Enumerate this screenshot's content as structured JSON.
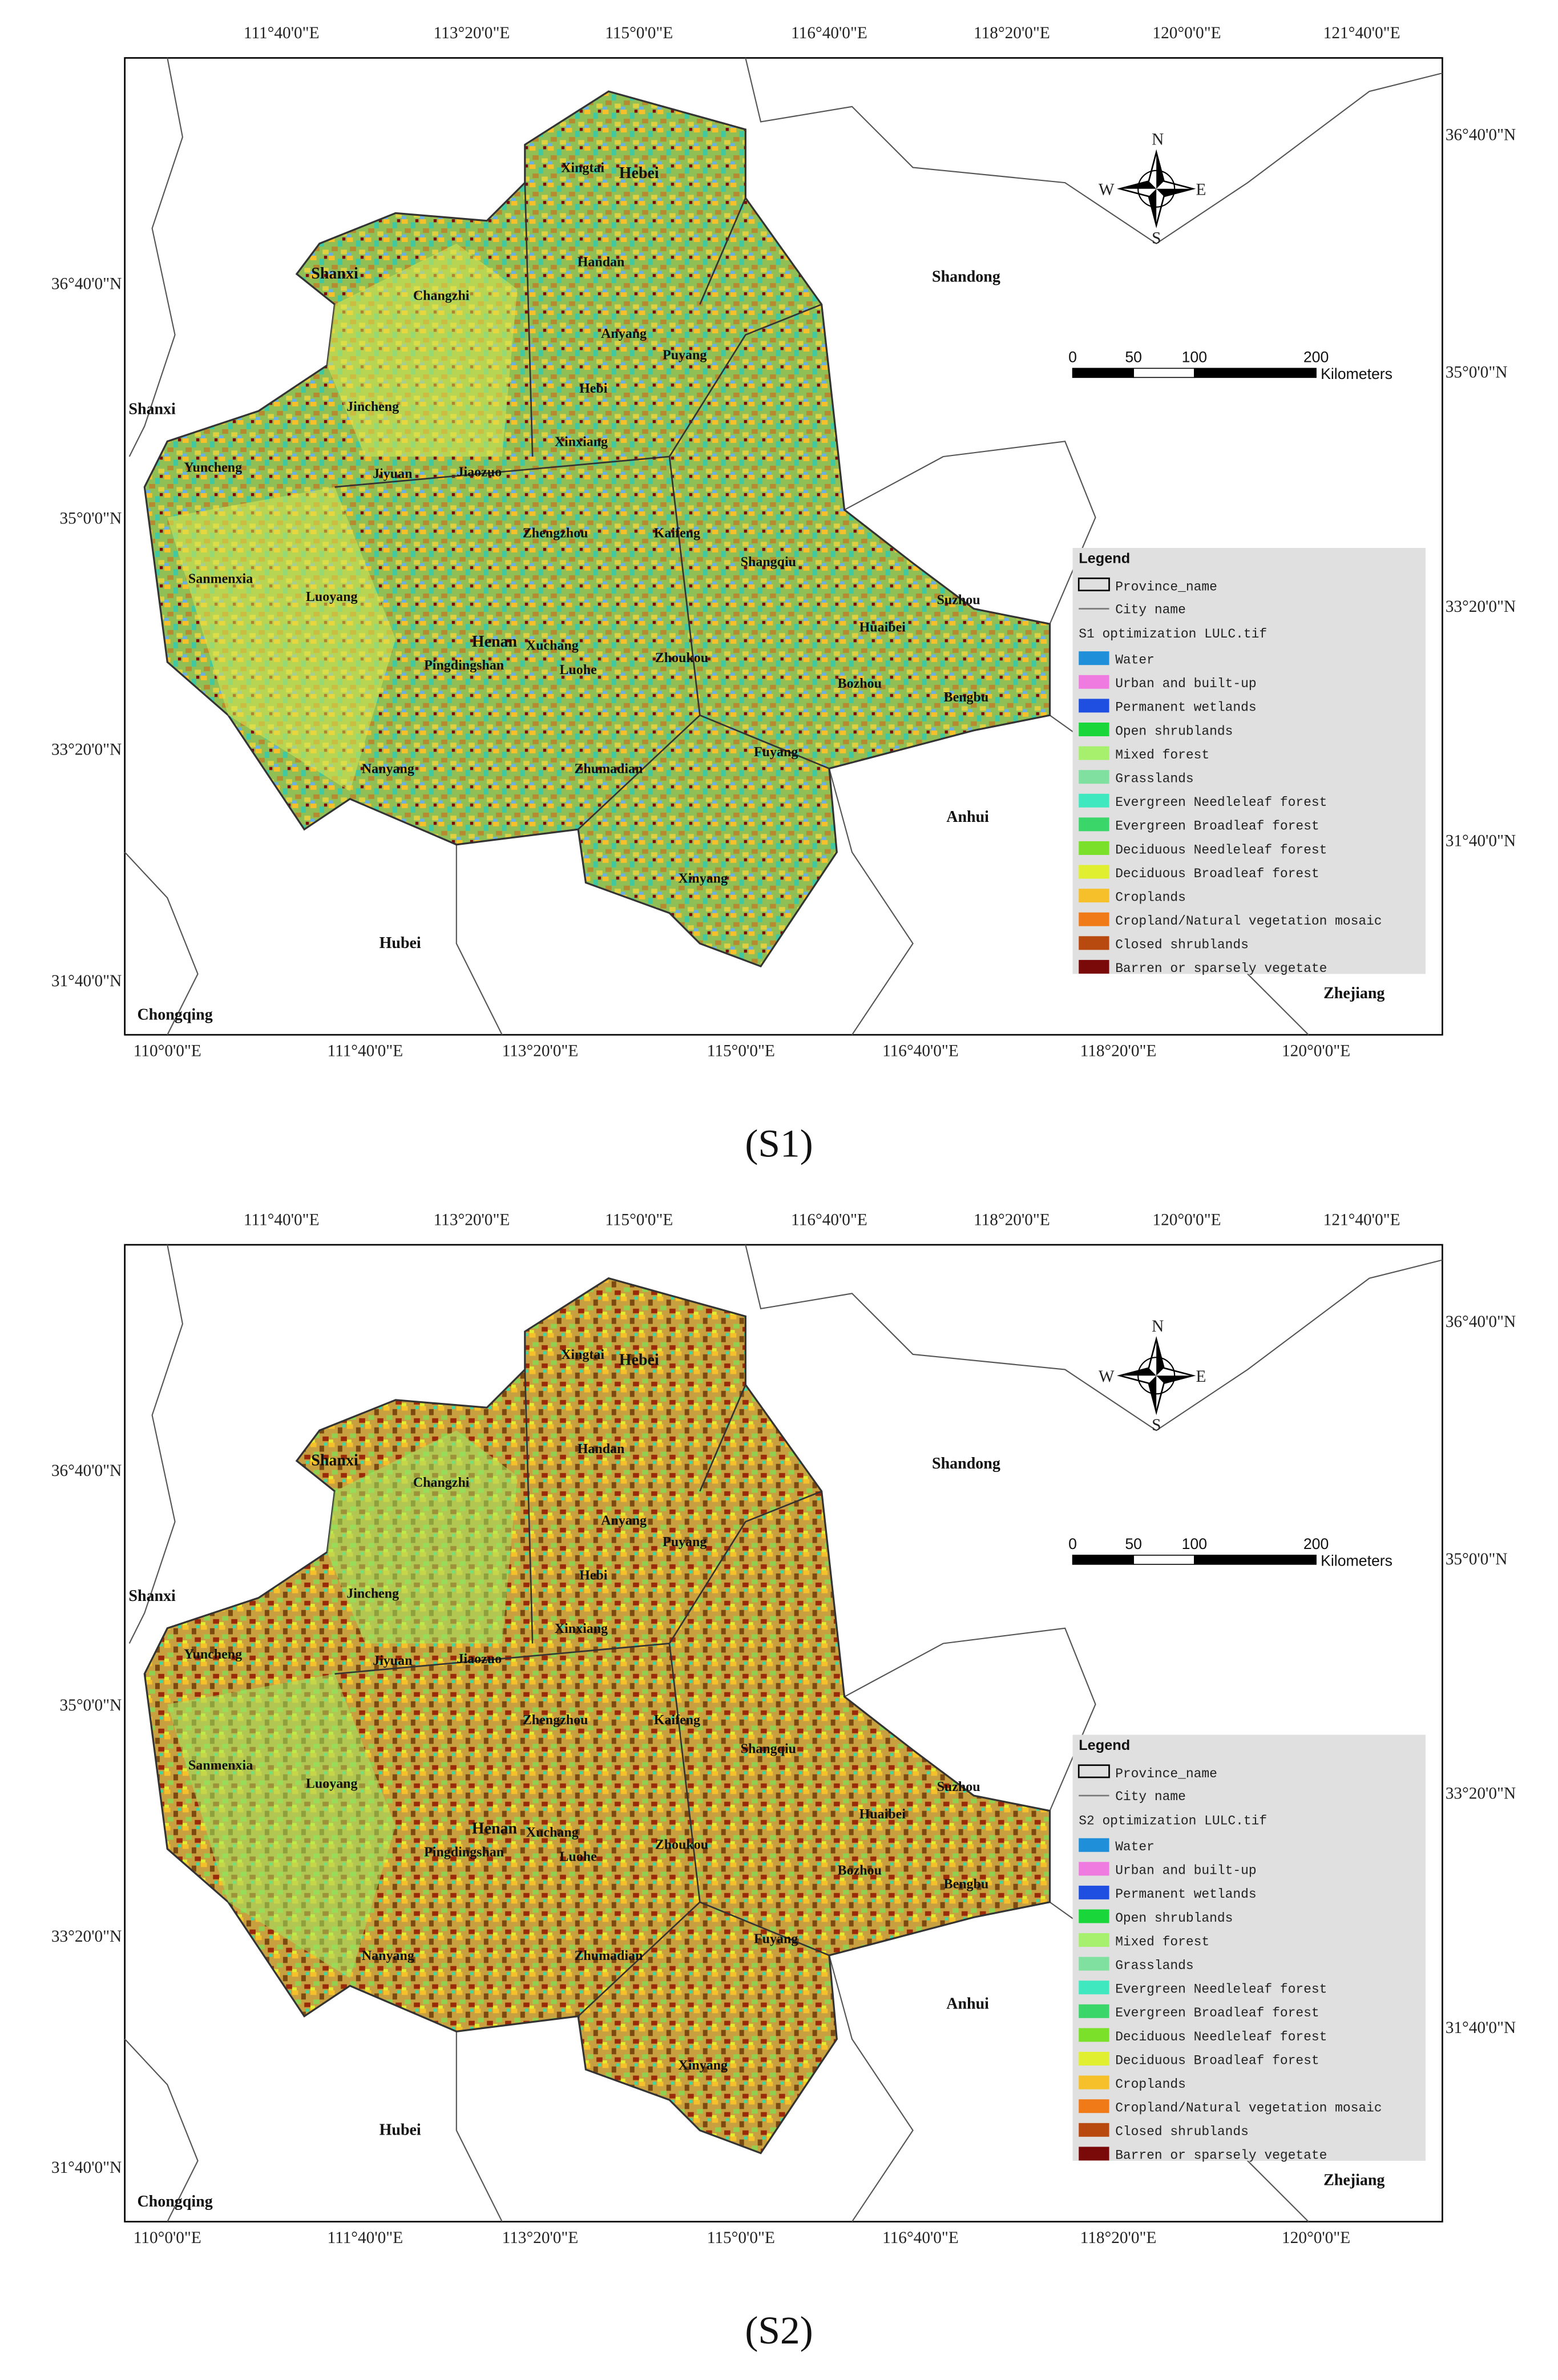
{
  "panels": [
    {
      "caption": "(S1)",
      "lon_top": [
        "111°40'0\"E",
        "113°20'0\"E",
        "115°0'0\"E",
        "116°40'0\"E",
        "118°20'0\"E",
        "120°0'0\"E",
        "121°40'0\"E"
      ],
      "lon_bottom": [
        "110°0'0\"E",
        "111°40'0\"E",
        "113°20'0\"E",
        "115°0'0\"E",
        "116°40'0\"E",
        "118°20'0\"E",
        "120°0'0\"E"
      ],
      "lat_left": [
        "36°40'0\"N",
        "35°0'0\"N",
        "33°20'0\"N",
        "31°40'0\"N"
      ],
      "lat_right": [
        "36°40'0\"N",
        "35°0'0\"N",
        "33°20'0\"N",
        "31°40'0\"N"
      ],
      "places": [
        "Xingtai",
        "Hebei",
        "Shanxi",
        "Changzhi",
        "Handan",
        "Shandong",
        "Anyang",
        "Puyang",
        "Shanxi",
        "Jincheng",
        "Hebi",
        "Xinxiang",
        "Yuncheng",
        "Jiyuan",
        "Jiaozuo",
        "Zhengzhou",
        "Kaifeng",
        "Shangqiu",
        "Sanmenxia",
        "Luoyang",
        "Suzhou",
        "Huaibei",
        "Xuchang",
        "Henan",
        "Pingdingshan",
        "Luohe",
        "Zhoukou",
        "Bozhou",
        "Bengbu",
        "Fuyang",
        "Nanyang",
        "Zhumadian",
        "Anhui",
        "Xinyang",
        "Hubei",
        "Chongqing",
        "Zhejiang"
      ],
      "compass": {
        "n": "N",
        "s": "S",
        "w": "W",
        "e": "E"
      },
      "scale_ticks": [
        0,
        50,
        100,
        200
      ],
      "scale_unit": "Kilometers",
      "legend": {
        "title": "Legend",
        "province": "Province_name",
        "city": "City name",
        "layer": "S1 optimization LULC.tif",
        "classes": [
          {
            "label": "Water",
            "color": "#1e8fd8"
          },
          {
            "label": "Urban and built-up",
            "color": "#f07be0"
          },
          {
            "label": "Permanent wetlands",
            "color": "#1f4fe0"
          },
          {
            "label": "Open shrublands",
            "color": "#19d63a"
          },
          {
            "label": "Mixed forest",
            "color": "#a6f06e"
          },
          {
            "label": "Grasslands",
            "color": "#80e0a0"
          },
          {
            "label": "Evergreen Needleleaf forest",
            "color": "#40e8c0"
          },
          {
            "label": "Evergreen Broadleaf forest",
            "color": "#3ad66a"
          },
          {
            "label": "Deciduous Needleleaf forest",
            "color": "#7ae02a"
          },
          {
            "label": "Deciduous Broadleaf forest",
            "color": "#e0f030"
          },
          {
            "label": "Croplands",
            "color": "#f5c02a"
          },
          {
            "label": "Cropland/Natural vegetation mosaic",
            "color": "#f07a18"
          },
          {
            "label": "Closed shrublands",
            "color": "#b84a10"
          },
          {
            "label": "Barren or sparsely vegetate",
            "color": "#7a0a0a"
          }
        ]
      }
    },
    {
      "caption": "(S2)",
      "lon_top": [
        "111°40'0\"E",
        "113°20'0\"E",
        "115°0'0\"E",
        "116°40'0\"E",
        "118°20'0\"E",
        "120°0'0\"E",
        "121°40'0\"E"
      ],
      "lon_bottom": [
        "110°0'0\"E",
        "111°40'0\"E",
        "113°20'0\"E",
        "115°0'0\"E",
        "116°40'0\"E",
        "118°20'0\"E",
        "120°0'0\"E"
      ],
      "lat_left": [
        "36°40'0\"N",
        "35°0'0\"N",
        "33°20'0\"N",
        "31°40'0\"N"
      ],
      "lat_right": [
        "36°40'0\"N",
        "35°0'0\"N",
        "33°20'0\"N",
        "31°40'0\"N"
      ],
      "places": [
        "Xingtai",
        "Hebei",
        "Shanxi",
        "Changzhi",
        "Handan",
        "Shandong",
        "Anyang",
        "Puyang",
        "Shanxi",
        "Jincheng",
        "Hebi",
        "Xinxiang",
        "Yuncheng",
        "Jiyuan",
        "Jiaozuo",
        "Zhengzhou",
        "Kaifeng",
        "Shangqiu",
        "Sanmenxia",
        "Luoyang",
        "Suzhou",
        "Huaibei",
        "Xuchang",
        "Henan",
        "Pingdingshan",
        "Luohe",
        "Zhoukou",
        "Bozhou",
        "Bengbu",
        "Fuyang",
        "Nanyang",
        "Zhumadian",
        "Anhui",
        "Xinyang",
        "Hubei",
        "Chongqing",
        "Zhejiang"
      ],
      "compass": {
        "n": "N",
        "s": "S",
        "w": "W",
        "e": "E"
      },
      "scale_ticks": [
        0,
        50,
        100,
        200
      ],
      "scale_unit": "Kilometers",
      "legend": {
        "title": "Legend",
        "province": "Province_name",
        "city": "City name",
        "layer": "S2 optimization LULC.tif",
        "classes": [
          {
            "label": "Water",
            "color": "#1e8fd8"
          },
          {
            "label": "Urban and built-up",
            "color": "#f07be0"
          },
          {
            "label": "Permanent wetlands",
            "color": "#1f4fe0"
          },
          {
            "label": "Open shrublands",
            "color": "#19d63a"
          },
          {
            "label": "Mixed forest",
            "color": "#a6f06e"
          },
          {
            "label": "Grasslands",
            "color": "#80e0a0"
          },
          {
            "label": "Evergreen Needleleaf forest",
            "color": "#40e8c0"
          },
          {
            "label": "Evergreen Broadleaf forest",
            "color": "#3ad66a"
          },
          {
            "label": "Deciduous Needleleaf forest",
            "color": "#7ae02a"
          },
          {
            "label": "Deciduous Broadleaf forest",
            "color": "#e0f030"
          },
          {
            "label": "Croplands",
            "color": "#f5c02a"
          },
          {
            "label": "Cropland/Natural vegetation mosaic",
            "color": "#f07a18"
          },
          {
            "label": "Closed shrublands",
            "color": "#b84a10"
          },
          {
            "label": "Barren or sparsely vegetate",
            "color": "#7a0a0a"
          }
        ]
      }
    }
  ]
}
